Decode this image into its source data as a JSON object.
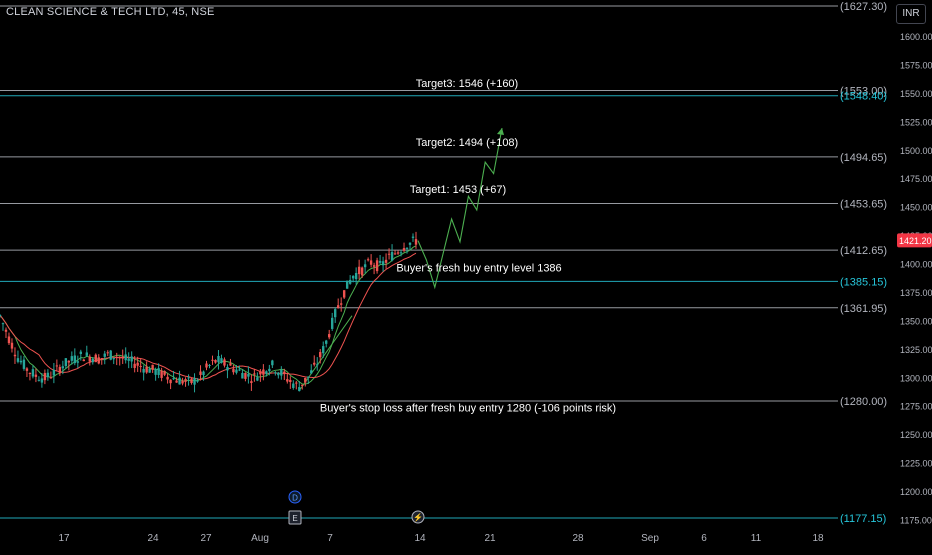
{
  "header": {
    "symbol_title": "CLEAN SCIENCE & TECH LTD, 45, NSE",
    "currency": "INR"
  },
  "price_axis": {
    "ticks": [
      "1600.00",
      "1575.00",
      "1550.00",
      "1525.00",
      "1500.00",
      "1475.00",
      "1450.00",
      "1425.00",
      "1400.00",
      "1375.00",
      "1350.00",
      "1325.00",
      "1300.00",
      "1275.00",
      "1250.00",
      "1225.00",
      "1200.00",
      "1175.00"
    ],
    "current_price": "1421.20",
    "current_price_color": "#f23645"
  },
  "time_axis": {
    "labels": [
      "17",
      "24",
      "27",
      "Aug",
      "7",
      "14",
      "21",
      "28",
      "Sep",
      "6",
      "11",
      "18"
    ]
  },
  "levels": [
    {
      "price": 1627.3,
      "label": "(1627.30)",
      "color": "#b2b5be"
    },
    {
      "price": 1553.0,
      "label": "(1553.00)",
      "color": "#b2b5be"
    },
    {
      "price": 1548.4,
      "label": "(1548.40)",
      "color": "#26c6da"
    },
    {
      "price": 1494.65,
      "label": "(1494.65)",
      "color": "#b2b5be"
    },
    {
      "price": 1453.65,
      "label": "(1453.65)",
      "color": "#b2b5be"
    },
    {
      "price": 1412.65,
      "label": "(1412.65)",
      "color": "#b2b5be"
    },
    {
      "price": 1385.15,
      "label": "(1385.15)",
      "color": "#26c6da"
    },
    {
      "price": 1361.95,
      "label": "(1361.95)",
      "color": "#b2b5be"
    },
    {
      "price": 1280.0,
      "label": "(1280.00)",
      "color": "#b2b5be"
    },
    {
      "price": 1177.15,
      "label": "(1177.15)",
      "color": "#26c6da"
    }
  ],
  "annotations": [
    {
      "text": "Target3: 1546 (+160)",
      "price": 1556
    },
    {
      "text": "Target2: 1494 (+108)",
      "price": 1504
    },
    {
      "text": "Target1: 1453 (+67)",
      "price": 1463
    },
    {
      "text": "Buyer's fresh buy entry level 1386",
      "price": 1394
    },
    {
      "text": "Buyer's stop loss after fresh buy entry 1280 (-106 points risk)",
      "price": 1271
    }
  ],
  "markers": {
    "dividend": "D",
    "earnings": "E",
    "lightning": "⚡"
  },
  "colors": {
    "up": "#26a69a",
    "down": "#ef5350",
    "projection": "#4caf50",
    "ma_fast": "#4caf50",
    "ma_slow": "#ef5350"
  },
  "chart_data": {
    "type": "candlestick",
    "title": "CLEAN SCIENCE & TECH LTD, 45, NSE",
    "ylim": [
      1165,
      1636
    ],
    "price_levels": [
      1627.3,
      1553.0,
      1548.4,
      1494.65,
      1453.65,
      1412.65,
      1385.15,
      1361.95,
      1280.0,
      1177.15
    ],
    "projection_path": [
      1421,
      1404,
      1380,
      1410,
      1440,
      1420,
      1460,
      1448,
      1490,
      1480,
      1520
    ],
    "candles_close_trend": [
      1355,
      1335,
      1318,
      1308,
      1302,
      1300,
      1305,
      1312,
      1316,
      1320,
      1319,
      1317,
      1321,
      1319,
      1316,
      1313,
      1309,
      1307,
      1303,
      1300,
      1298,
      1296,
      1300,
      1310,
      1316,
      1312,
      1308,
      1304,
      1300,
      1306,
      1312,
      1305,
      1298,
      1292,
      1300,
      1312,
      1330,
      1355,
      1375,
      1390,
      1395,
      1402,
      1398,
      1406,
      1412,
      1418,
      1421
    ]
  }
}
